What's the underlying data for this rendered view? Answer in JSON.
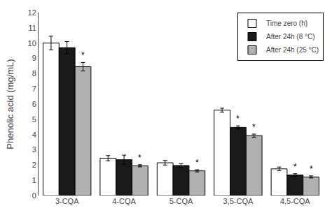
{
  "chart_data": {
    "type": "bar",
    "ylabel": "Phenolic acid (mg/mL)",
    "categories": [
      "3-CQA",
      "4-CQA",
      "5-CQA",
      "3,5-CQA",
      "4,5-CQA"
    ],
    "series": [
      {
        "name": "Time zero (h)",
        "color": "#ffffff",
        "values": [
          10.0,
          2.45,
          2.15,
          5.6,
          1.75
        ],
        "errors": [
          0.45,
          0.17,
          0.15,
          0.13,
          0.12
        ],
        "annotations": [
          null,
          null,
          null,
          null,
          null
        ]
      },
      {
        "name": "After 24h (8 °C)",
        "color": "#1a1a1a",
        "values": [
          9.7,
          2.35,
          1.97,
          4.47,
          1.35
        ],
        "errors": [
          0.4,
          0.3,
          0.12,
          0.1,
          0.08
        ],
        "annotations": [
          null,
          null,
          null,
          "*",
          "*"
        ]
      },
      {
        "name": "After 24h (25 °C)",
        "color": "#b0b0b0",
        "values": [
          8.45,
          1.95,
          1.62,
          3.93,
          1.22
        ],
        "errors": [
          0.28,
          0.07,
          0.07,
          0.1,
          0.07
        ],
        "annotations": [
          "*",
          "*",
          "*",
          "*",
          "*"
        ]
      }
    ],
    "ylim": [
      0,
      12
    ],
    "yticks": [
      0,
      1,
      2,
      3,
      4,
      5,
      6,
      7,
      8,
      9,
      10,
      11,
      12
    ],
    "grid": false,
    "legend": "upper right"
  }
}
